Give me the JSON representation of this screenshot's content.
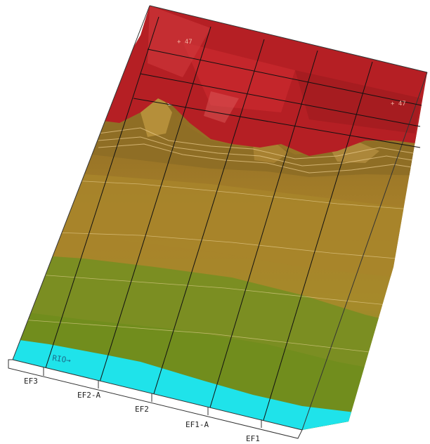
{
  "river_label": "RIO→",
  "elevation_labels": [
    "+ 47",
    "+ 47"
  ],
  "sections": [
    "EF3",
    "EF2-A",
    "EF2",
    "EF1-A",
    "EF1"
  ],
  "colors": {
    "peak": "#b51f24",
    "peak_light": "#d2353a",
    "ridge": "#9c7a2c",
    "upper_slope": "#a77d28",
    "mid_slope": "#a68b2a",
    "lower_slope": "#7a8d22",
    "toe": "#6f8e1c",
    "river": "#1fe3ea",
    "grid_line": "#111111",
    "contour": "#f0d9a0"
  }
}
